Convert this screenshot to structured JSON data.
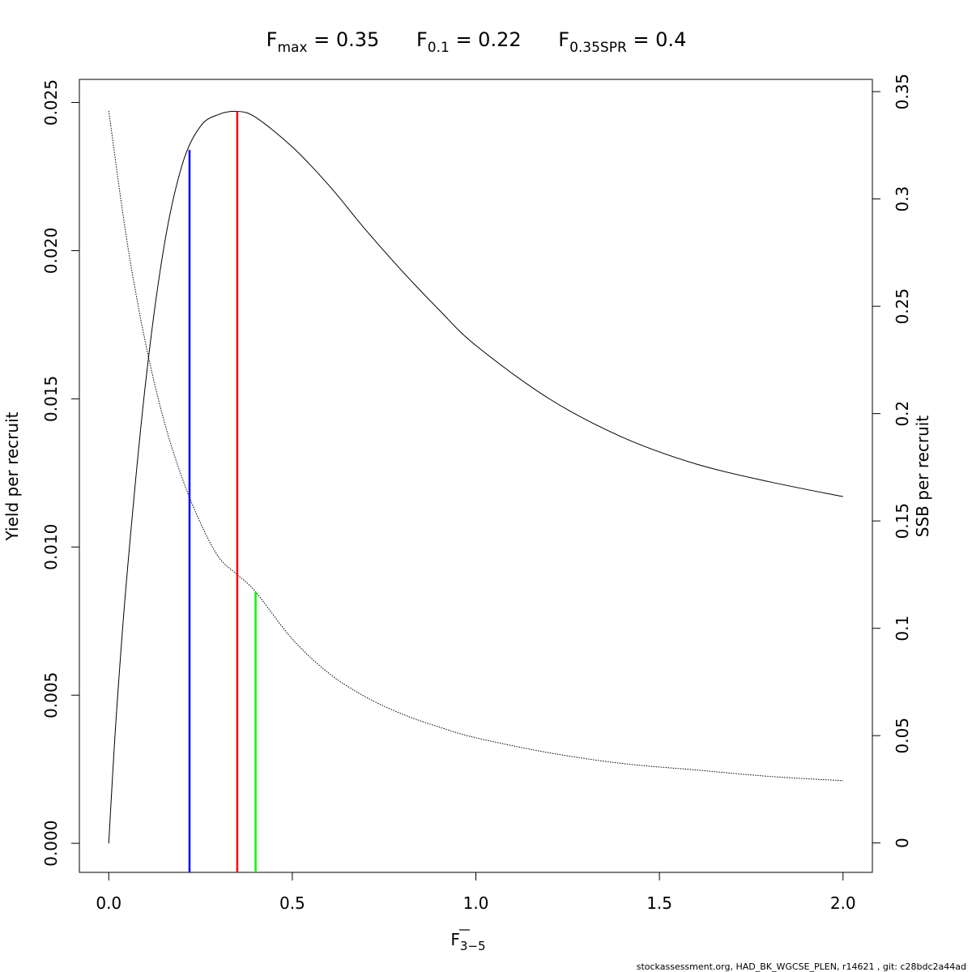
{
  "chart_data": {
    "type": "line",
    "title": {
      "fmax": {
        "base": "F",
        "sub": "max",
        "text": " = 0.35"
      },
      "f01": {
        "base": "F",
        "sub": "0.1",
        "text": " = 0.22"
      },
      "fspr": {
        "base": "F",
        "sub": "0.35SPR",
        "text": " = 0.4"
      }
    },
    "xlabel": {
      "base": "F",
      "sub": "3−5"
    },
    "ylabel_left": "Yield per recruit",
    "ylabel_right": "SSB per recruit",
    "footer": "stockassessment.org, HAD_BK_WGCSE_PLEN, r14621 , git: c28bdc2a44ad",
    "xlim": [
      -0.08,
      2.08
    ],
    "ylim_left": [
      -0.00098,
      0.02578
    ],
    "ylim_right": [
      -0.0137,
      0.3557
    ],
    "x_ticks": [
      0,
      0.5,
      1,
      1.5,
      2
    ],
    "x_tick_labels": [
      "0.0",
      "0.5",
      "1.0",
      "1.5",
      "2.0"
    ],
    "y_left_ticks": [
      0,
      0.005,
      0.01,
      0.015,
      0.02,
      0.025
    ],
    "y_left_tick_labels": [
      "0.000",
      "0.005",
      "0.010",
      "0.015",
      "0.020",
      "0.025"
    ],
    "y_right_ticks": [
      0,
      0.05,
      0.1,
      0.15,
      0.2,
      0.25,
      0.3,
      0.35
    ],
    "y_right_tick_labels": [
      "0",
      "0.05",
      "0.1",
      "0.15",
      "0.2",
      "0.25",
      "0.3",
      "0.35"
    ],
    "grid": false,
    "series": [
      {
        "axis": "left",
        "style": "solid",
        "color": "#000000",
        "x": [
          0,
          0.02,
          0.05,
          0.1,
          0.15,
          0.2,
          0.25,
          0.3,
          0.35,
          0.4,
          0.5,
          0.6,
          0.7,
          0.8,
          0.9,
          1.0,
          1.2,
          1.4,
          1.6,
          1.8,
          2.0
        ],
        "values": [
          0,
          0.0042,
          0.0091,
          0.0155,
          0.0201,
          0.0229,
          0.0242,
          0.0246,
          0.0247,
          0.0245,
          0.0235,
          0.0222,
          0.0207,
          0.0193,
          0.018,
          0.0168,
          0.015,
          0.0137,
          0.0128,
          0.0122,
          0.0117
        ]
      },
      {
        "axis": "right",
        "style": "dotted",
        "color": "#000000",
        "x": [
          0,
          0.05,
          0.1,
          0.15,
          0.2,
          0.25,
          0.3,
          0.35,
          0.4,
          0.5,
          0.6,
          0.7,
          0.8,
          0.9,
          1.0,
          1.2,
          1.4,
          1.6,
          1.8,
          2.0
        ],
        "values": [
          0.341,
          0.28,
          0.233,
          0.197,
          0.17,
          0.149,
          0.133,
          0.125,
          0.117,
          0.095,
          0.079,
          0.068,
          0.06,
          0.054,
          0.049,
          0.042,
          0.037,
          0.034,
          0.031,
          0.029
        ]
      }
    ],
    "reference_lines": [
      {
        "name": "F0.1",
        "x": 0.22,
        "y_top": 0.0234,
        "axis": "left",
        "color": "#0000ff"
      },
      {
        "name": "Fmax",
        "x": 0.35,
        "y_top": 0.0247,
        "axis": "left",
        "color": "#ff0000"
      },
      {
        "name": "F0.35SPR",
        "x": 0.4,
        "y_top": 0.117,
        "axis": "right",
        "color": "#00ff00"
      }
    ]
  }
}
